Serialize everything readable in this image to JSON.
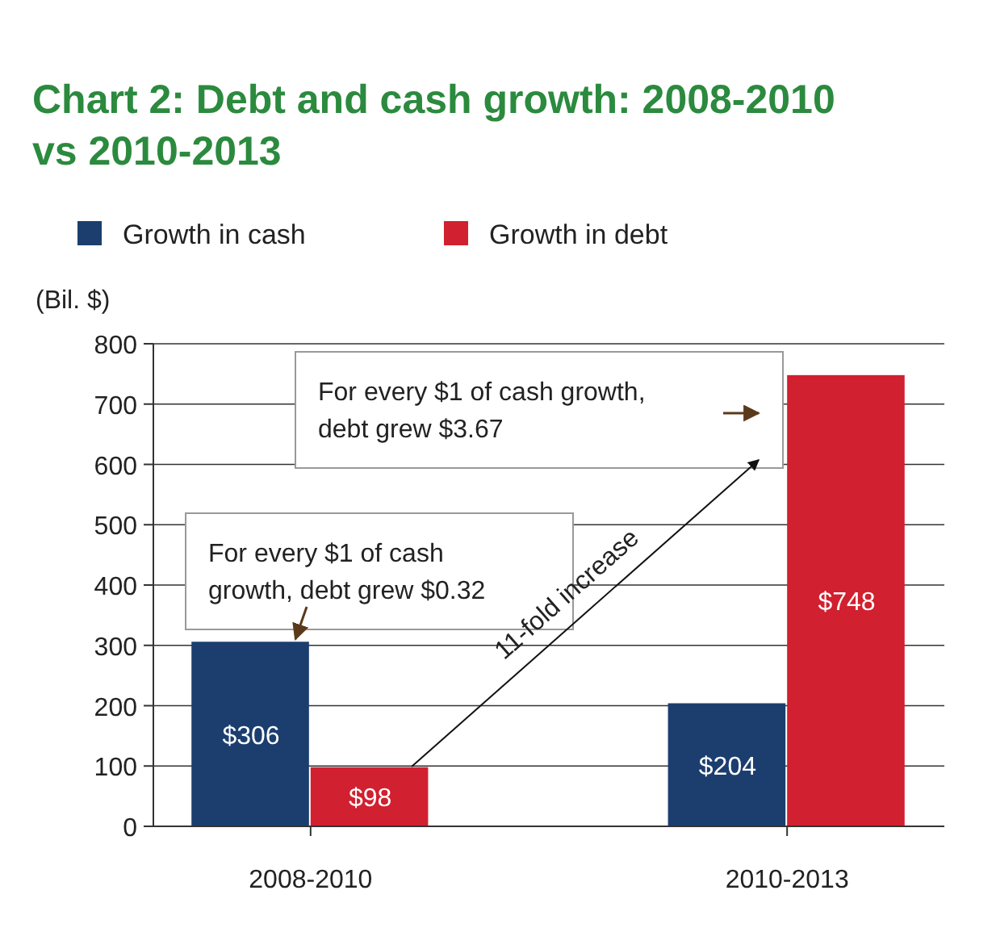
{
  "chart_data": {
    "type": "bar",
    "title": "Chart 2: Debt and cash growth: 2008-2010 vs 2010-2013",
    "ylabel": "(Bil. $)",
    "categories": [
      "2008-2010",
      "2010-2013"
    ],
    "series": [
      {
        "name": "Growth in cash",
        "color": "#1b3e6f",
        "values": [
          306,
          204
        ],
        "value_labels": [
          "$306",
          "$204"
        ]
      },
      {
        "name": "Growth in debt",
        "color": "#d1202f",
        "values": [
          98,
          748
        ],
        "value_labels": [
          "$98",
          "$748"
        ]
      }
    ],
    "ylim": [
      0,
      800
    ],
    "yticks": [
      0,
      100,
      200,
      300,
      400,
      500,
      600,
      700,
      800
    ],
    "grid": "y",
    "legend": "top",
    "annotations": [
      "For every $1 of cash growth, debt grew $0.32",
      "For every $1 of cash growth, debt grew $3.67",
      "11-fold increase"
    ]
  }
}
